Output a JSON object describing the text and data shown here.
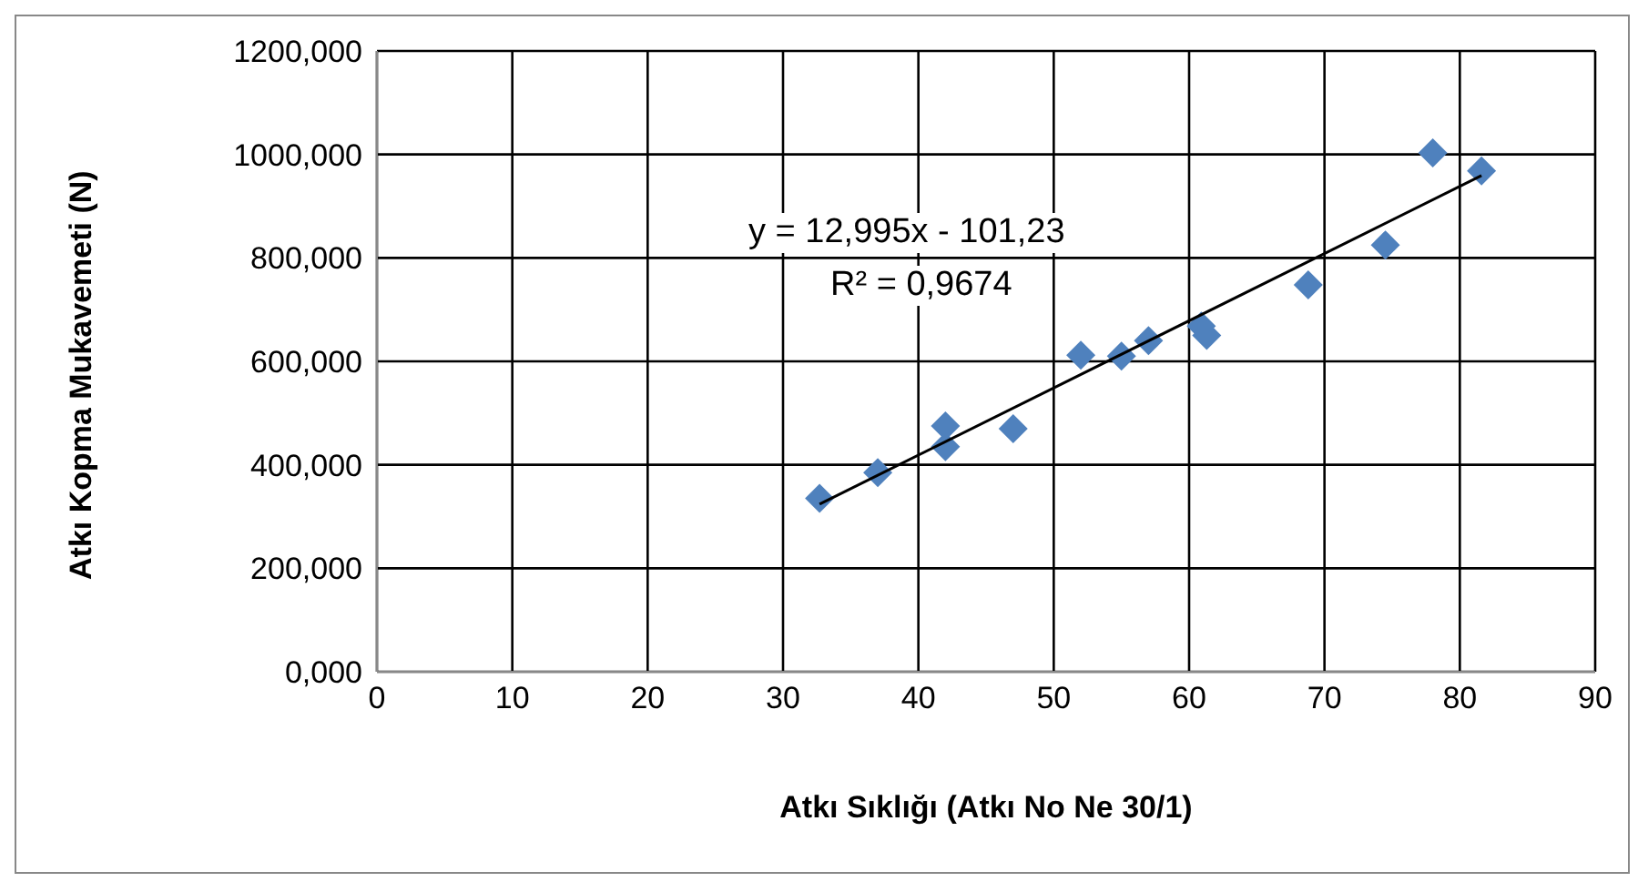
{
  "chart_data": {
    "type": "scatter",
    "xlabel": "Atkı Sıklığı (Atkı No Ne 30/1)",
    "ylabel": "Atkı Kopma Mukavemeti (N)",
    "xlim": [
      0,
      90
    ],
    "xticks": [
      0,
      10,
      20,
      30,
      40,
      50,
      60,
      70,
      80,
      90
    ],
    "ylim": [
      0,
      1200
    ],
    "yticks": [
      {
        "value": 0,
        "label": "0,000"
      },
      {
        "value": 200,
        "label": "200,000"
      },
      {
        "value": 400,
        "label": "400,000"
      },
      {
        "value": 600,
        "label": "600,000"
      },
      {
        "value": 800,
        "label": "800,000"
      },
      {
        "value": 1000,
        "label": "1000,000"
      },
      {
        "value": 1200,
        "label": "1200,000"
      }
    ],
    "grid": true,
    "marker": "diamond",
    "series": [
      {
        "color": "#4f81bd",
        "x": [
          32.7,
          37,
          42,
          42,
          47,
          52,
          55,
          57,
          60.9,
          61.3,
          68.8,
          74.5,
          78,
          81.6
        ],
        "values": [
          335,
          385,
          435,
          475,
          470,
          612,
          610,
          640,
          668,
          650,
          748,
          825,
          1003,
          968
        ]
      },
      {
        "type": "line",
        "color": "#000000",
        "marker": "none",
        "x": [
          32.7,
          81.6
        ],
        "values": [
          324,
          959
        ]
      }
    ],
    "annotations": [
      "y = 12,995x - 101,23",
      "R² = 0,9674"
    ]
  }
}
